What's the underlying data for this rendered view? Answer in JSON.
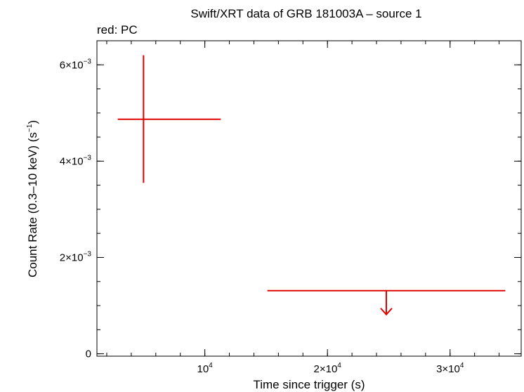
{
  "chart_data": {
    "type": "scatter",
    "title": "Swift/XRT data of GRB 181003A – source 1",
    "subtitle": "red: PC",
    "xlabel": "Time since trigger (s)",
    "ylabel": "Count Rate (0.3–10 keV) (s",
    "ylabel_sup": "−1",
    "ylabel_close": ")",
    "xlim": [
      1200,
      35800
    ],
    "ylim": [
      -5e-05,
      0.0065
    ],
    "x_ticks": [
      {
        "value": 10000,
        "mant": "10",
        "exp": "4"
      },
      {
        "value": 20000,
        "mant": "2×10",
        "exp": "4"
      },
      {
        "value": 30000,
        "mant": "3×10",
        "exp": "4"
      }
    ],
    "y_ticks": [
      {
        "value": 0,
        "mant": "0",
        "exp": ""
      },
      {
        "value": 0.002,
        "mant": "2×10",
        "exp": "−3"
      },
      {
        "value": 0.004,
        "mant": "4×10",
        "exp": "−3"
      },
      {
        "value": 0.006,
        "mant": "6×10",
        "exp": "−3"
      }
    ],
    "x_minor_step": 2000,
    "y_minor_step": 0.0005,
    "series": [
      {
        "color": "#e00000",
        "points": [
          {
            "x": 5000,
            "xlo": 2900,
            "xhi": 11300,
            "y": 0.00487,
            "ylo": 0.00355,
            "yhi": 0.0062,
            "upper_limit": false
          },
          {
            "x": 24800,
            "xlo": 15100,
            "xhi": 34500,
            "y": 0.00131,
            "upper_limit": true
          }
        ]
      }
    ]
  }
}
